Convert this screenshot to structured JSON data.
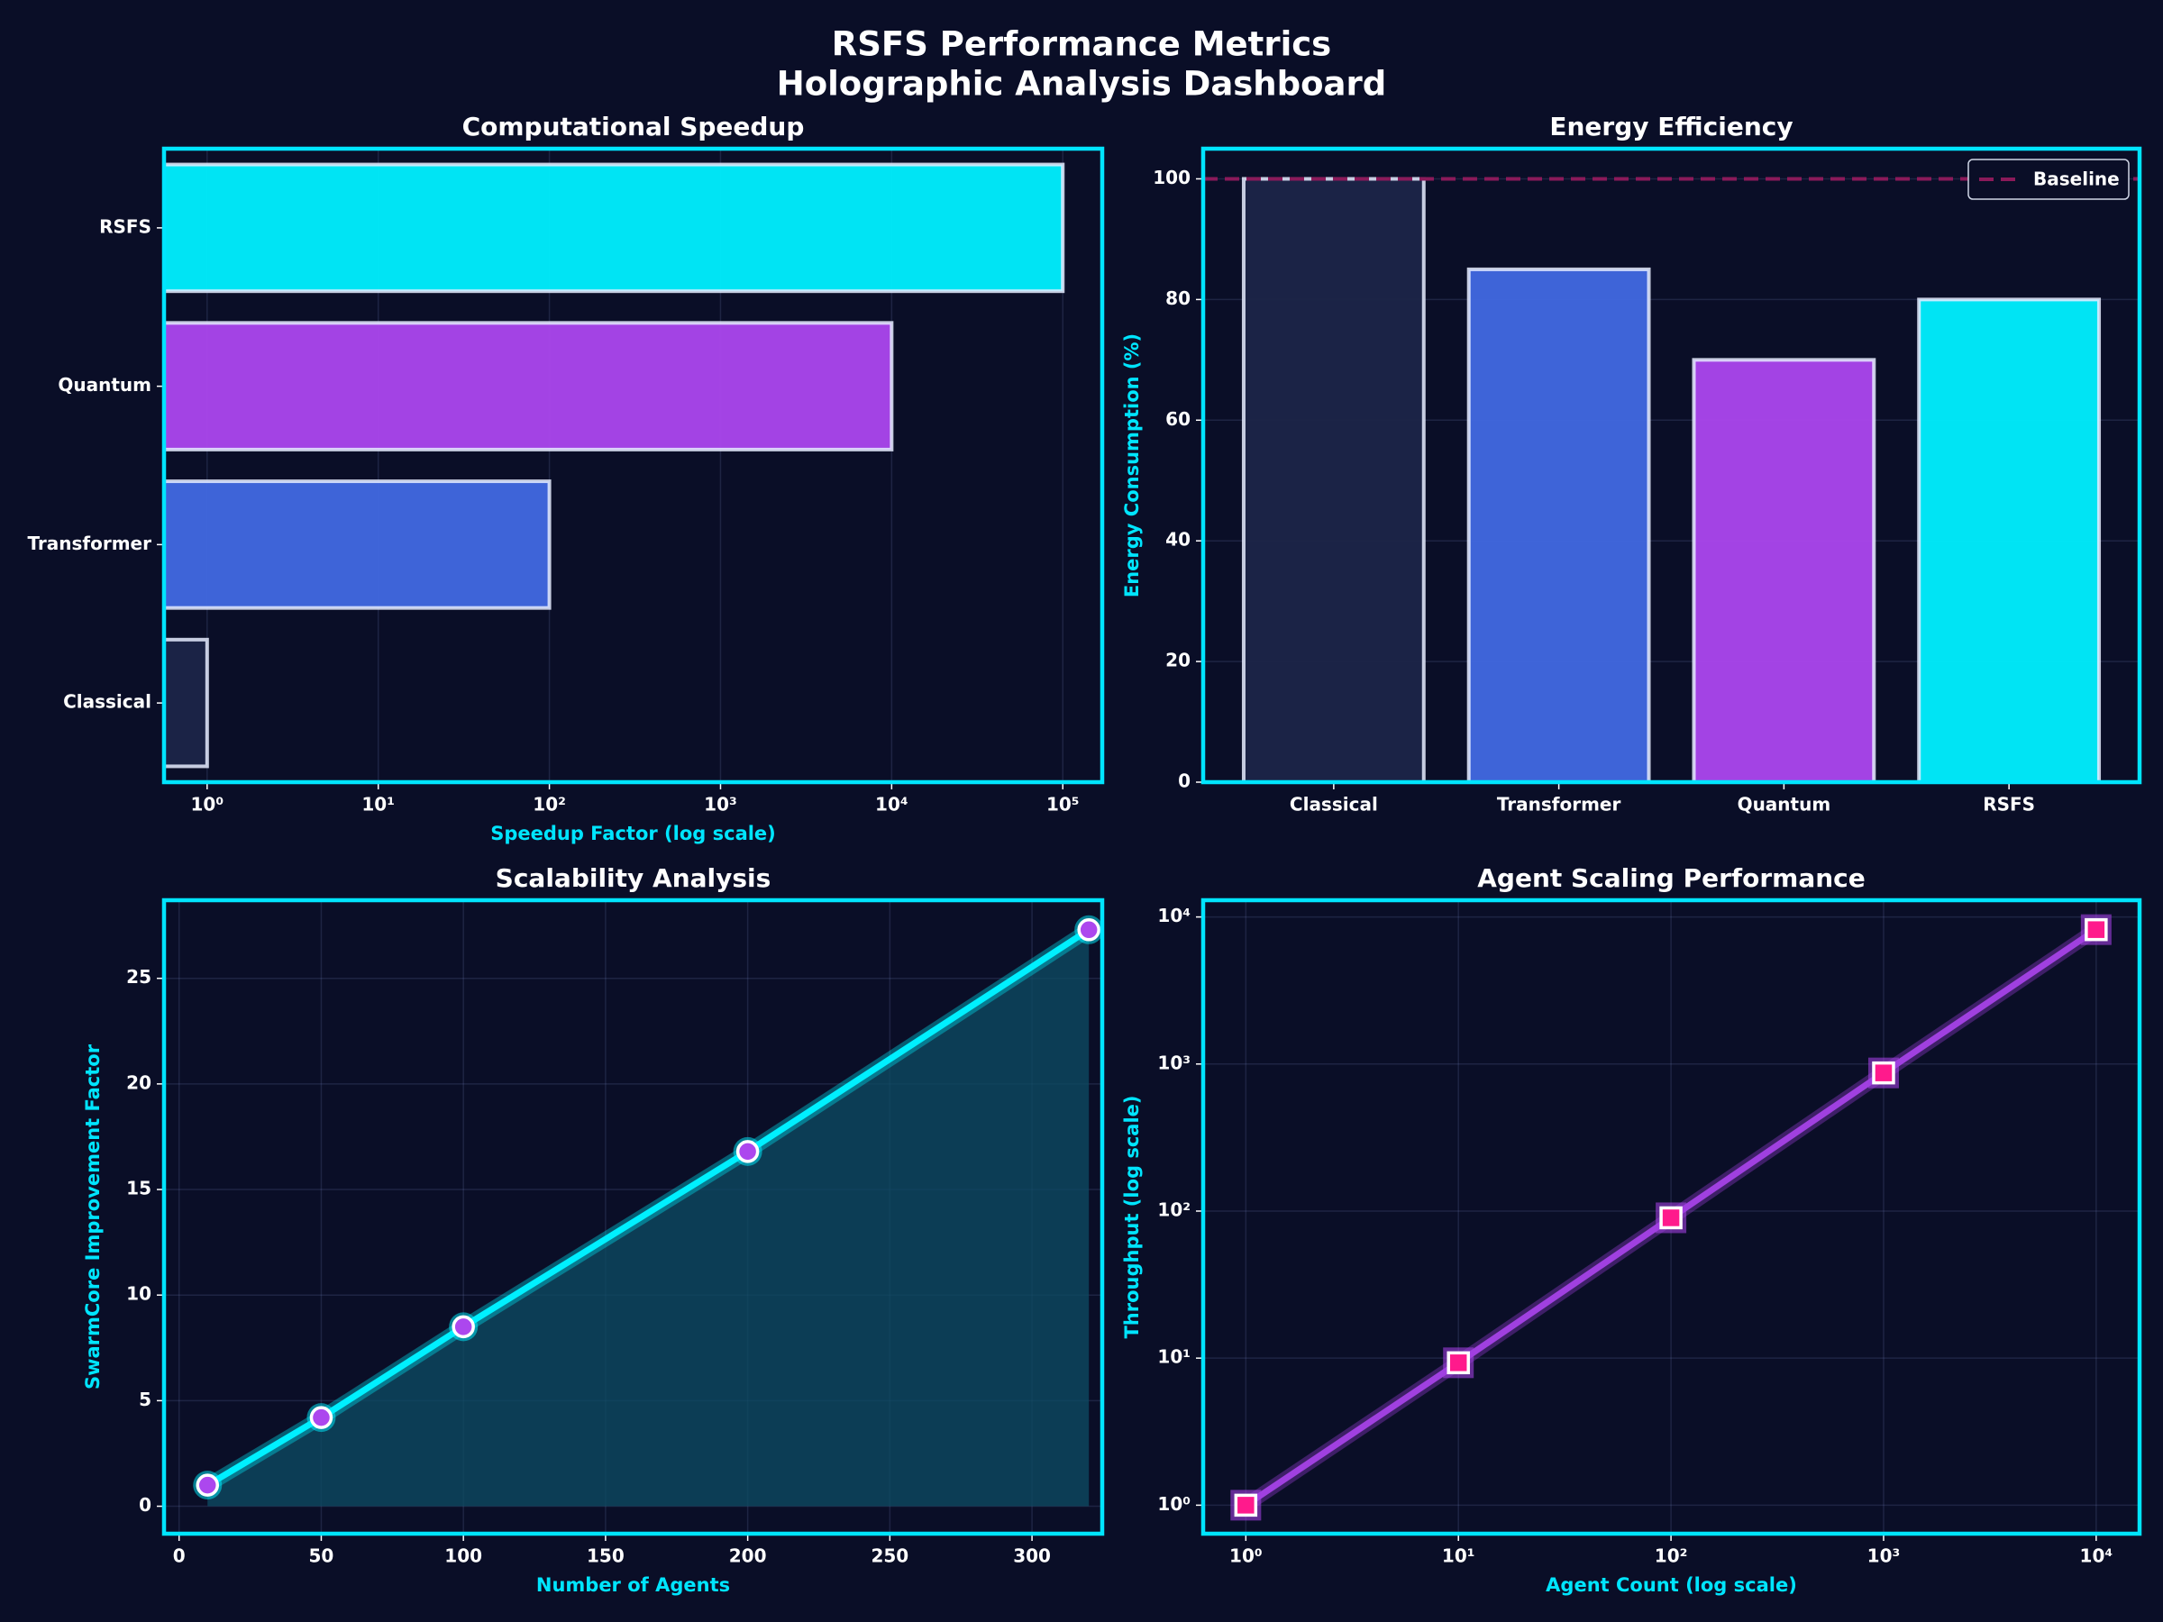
{
  "title": "RSFS Performance Metrics",
  "subtitle": "Holographic Analysis Dashboard",
  "chart_data": [
    {
      "type": "bar",
      "orientation": "horizontal",
      "title": "Computational Speedup",
      "xlabel": "Speedup Factor (log scale)",
      "categories": [
        "Classical",
        "Transformer",
        "Quantum",
        "RSFS"
      ],
      "values": [
        1,
        100,
        10000,
        100000
      ],
      "colors": [
        "#1c2548",
        "#4169e1",
        "#ac47ee",
        "#00f0ff"
      ],
      "xlog": true,
      "xlim": [
        0.56,
        170000
      ],
      "xticks": [
        {
          "value": 1,
          "label": "10⁰"
        },
        {
          "value": 10,
          "label": "10¹"
        },
        {
          "value": 100,
          "label": "10²"
        },
        {
          "value": 1000,
          "label": "10³"
        },
        {
          "value": 10000,
          "label": "10⁴"
        },
        {
          "value": 100000,
          "label": "10⁵"
        }
      ],
      "grid": true
    },
    {
      "type": "bar",
      "title": "Energy Efficiency",
      "ylabel": "Energy Consumption (%)",
      "categories": [
        "Classical",
        "Transformer",
        "Quantum",
        "RSFS"
      ],
      "values": [
        100,
        85,
        70,
        80
      ],
      "colors": [
        "#1c2548",
        "#4169e1",
        "#ac47ee",
        "#00f0ff"
      ],
      "ylim": [
        0,
        105
      ],
      "yticks": [
        0,
        20,
        40,
        60,
        80,
        100
      ],
      "grid": true,
      "reference_line": {
        "label": "Baseline",
        "value": 100,
        "color": "#8b1a5a"
      },
      "legend": "upper right"
    },
    {
      "type": "line",
      "title": "Scalability Analysis",
      "xlabel": "Number of Agents",
      "ylabel": "SwarmCore Improvement Factor",
      "x": [
        10,
        50,
        100,
        200,
        320
      ],
      "values": [
        1.0,
        4.2,
        8.5,
        16.8,
        27.3
      ],
      "color": "#00f0ff",
      "marker_color": "#ac47ee",
      "fill": true,
      "xlim": [
        -5.3,
        324.7
      ],
      "ylim": [
        -1.3,
        28.7
      ],
      "xticks": [
        0,
        50,
        100,
        150,
        200,
        250,
        300
      ],
      "yticks": [
        0,
        5,
        10,
        15,
        20,
        25
      ],
      "grid": true
    },
    {
      "type": "line",
      "title": "Agent Scaling Performance",
      "xlabel": "Agent Count (log scale)",
      "ylabel": "Throughput (log scale)",
      "x": [
        1,
        10,
        100,
        1000,
        10000
      ],
      "values": [
        1,
        9.3,
        90,
        870,
        8200
      ],
      "color": "#a040e0",
      "marker_color": "#ff1a8c",
      "marker": "square",
      "xlog": true,
      "ylog": true,
      "xlim": [
        0.63,
        16000
      ],
      "ylim": [
        0.64,
        13000
      ],
      "xticks": [
        {
          "value": 1,
          "label": "10⁰"
        },
        {
          "value": 10,
          "label": "10¹"
        },
        {
          "value": 100,
          "label": "10²"
        },
        {
          "value": 1000,
          "label": "10³"
        },
        {
          "value": 10000,
          "label": "10⁴"
        }
      ],
      "yticks": [
        {
          "value": 1,
          "label": "10⁰"
        },
        {
          "value": 10,
          "label": "10¹"
        },
        {
          "value": 100,
          "label": "10²"
        },
        {
          "value": 1000,
          "label": "10³"
        },
        {
          "value": 10000,
          "label": "10⁴"
        }
      ],
      "grid": true
    }
  ]
}
